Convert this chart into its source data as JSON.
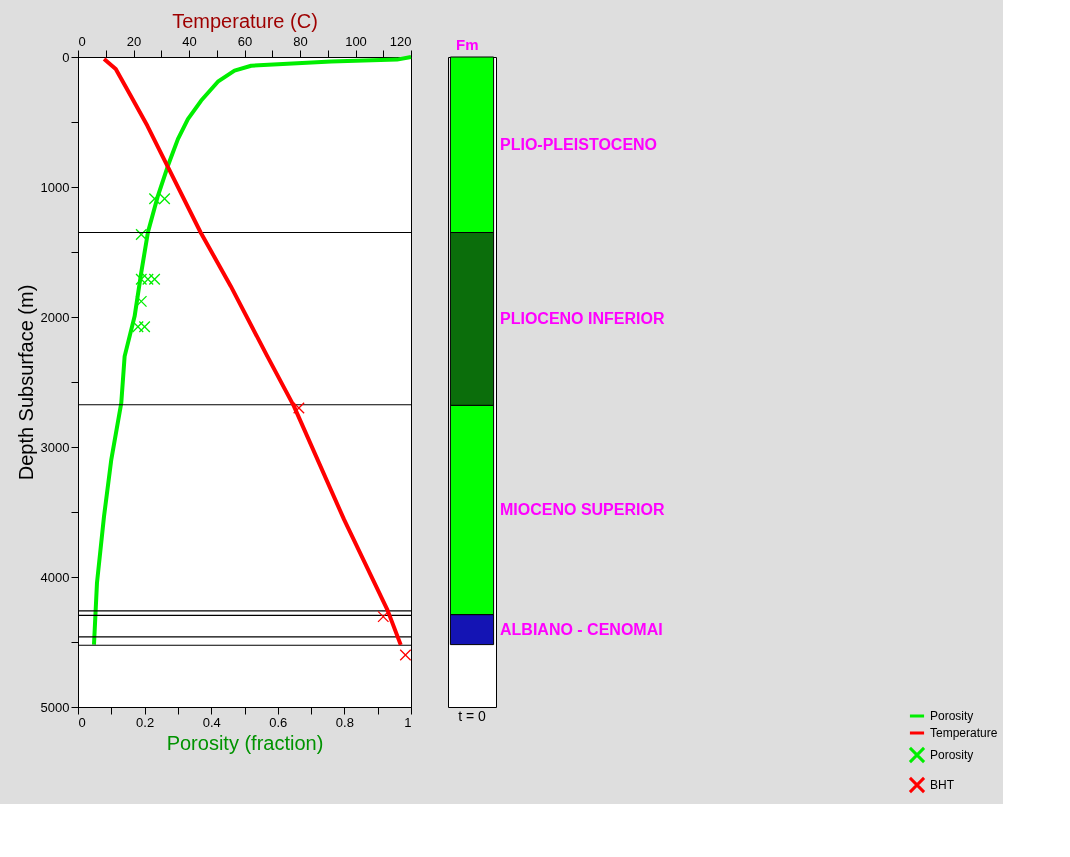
{
  "chart_data": [
    {
      "type": "line",
      "x2label": "Temperature (C)",
      "xlabel": "Porosity (fraction)",
      "ylabel": "Depth Subsurface (m)",
      "xlim": [
        0,
        1
      ],
      "xticks": [
        0,
        {
          "value": 0.1,
          "label": null
        },
        0.2,
        {
          "value": 0.3,
          "label": null
        },
        0.4,
        {
          "value": 0.5,
          "label": null
        },
        0.6,
        {
          "value": 0.7,
          "label": null
        },
        0.8,
        {
          "value": 0.9,
          "label": null
        },
        1
      ],
      "x2lim": [
        0,
        120
      ],
      "x2ticks": [
        0,
        {
          "value": 10,
          "label": null
        },
        20,
        {
          "value": 30,
          "label": null
        },
        40,
        {
          "value": 50,
          "label": null
        },
        60,
        {
          "value": 70,
          "label": null
        },
        80,
        {
          "value": 90,
          "label": null
        },
        100,
        {
          "value": 110,
          "label": null
        },
        120
      ],
      "ylim": [
        5000,
        0
      ],
      "yticks": [
        0,
        {
          "value": 500,
          "label": null
        },
        1000,
        {
          "value": 1500,
          "label": null
        },
        2000,
        {
          "value": 2500,
          "label": null
        },
        3000,
        {
          "value": 3500,
          "label": null
        },
        4000,
        {
          "value": 4500,
          "label": null
        },
        5000
      ],
      "grid": false,
      "legend": "bottom right",
      "series": [
        {
          "name": "Porosity",
          "color": "#00ee00",
          "x": [
            1.0,
            0.958,
            0.76,
            0.52,
            0.47,
            0.42,
            0.37,
            0.33,
            0.3,
            0.27,
            0.24,
            0.21,
            0.19,
            0.17,
            0.14,
            0.13,
            0.1,
            0.078,
            0.057,
            0.048
          ],
          "values": [
            0,
            20,
            35,
            67,
            105,
            190,
            335,
            478,
            632,
            837,
            1068,
            1348,
            1657,
            1995,
            2303,
            2660,
            3097,
            3536,
            4045,
            4520
          ]
        },
        {
          "name": "Temperature",
          "axis": "x2",
          "color": "#ff0000",
          "x": [
            9.4,
            13.6,
            19,
            25,
            32.2,
            44.2,
            55,
            68.2,
            77.8,
            95.9,
            111.5,
            116.3
          ],
          "values": [
            15,
            92,
            298,
            529,
            837,
            1350,
            1761,
            2301,
            2686,
            3559,
            4253,
            4522
          ]
        },
        {
          "name": "Porosity",
          "type": "scatter",
          "marker": "cross",
          "color": "#00ee00",
          "x": [
            0.23,
            0.26,
            0.19,
            0.19,
            0.21,
            0.23,
            0.19,
            0.18,
            0.2
          ],
          "values": [
            1090,
            1090,
            1365,
            1710,
            1710,
            1710,
            1880,
            2075,
            2075
          ]
        },
        {
          "name": "BHT",
          "type": "scatter",
          "marker": "cross",
          "axis": "x2",
          "color": "#ff0000",
          "x": [
            79.6,
            110,
            118
          ],
          "values": [
            2700,
            4305,
            4600
          ]
        }
      ],
      "ref_lines": [
        {
          "axis": "y",
          "value": 1350,
          "color": "#000000"
        },
        {
          "axis": "y",
          "value": 2675,
          "color": "#000000"
        },
        {
          "axis": "y",
          "value": 4260,
          "color": "#000000"
        },
        {
          "axis": "y",
          "value": 4295,
          "color": "#000000"
        },
        {
          "axis": "y",
          "value": 4460,
          "color": "#000000"
        },
        {
          "axis": "y",
          "value": 4525,
          "color": "#000000"
        }
      ]
    },
    {
      "type": "bar",
      "title": "Fm",
      "stacked": true,
      "categories": [
        "t = 0"
      ],
      "ylim": [
        5000,
        0
      ],
      "tick_labels": "x",
      "series": [
        {
          "name": "PLIO-PLEISTOCENO",
          "color": "#00ff00",
          "values": [
            1350
          ]
        },
        {
          "name": "PLIOCENO INFERIOR",
          "color": "#0b6e0b",
          "values": [
            1330
          ]
        },
        {
          "name": "MIOCENO SUPERIOR",
          "color": "#00ff00",
          "values": [
            1610
          ]
        },
        {
          "name": "ALBIANO - CENOMAI",
          "color": "#1414b4",
          "values": [
            230
          ]
        }
      ]
    }
  ]
}
